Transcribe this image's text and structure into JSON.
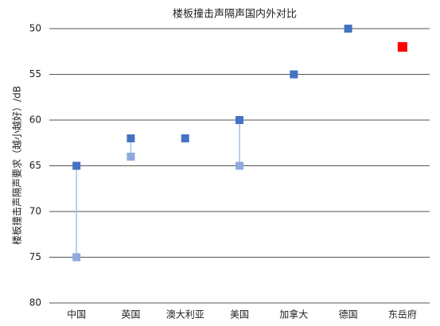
{
  "chart_data": {
    "type": "scatter",
    "title": "楼板撞击声隔声国内外对比",
    "y_label": "楼板撞击声隔声要求（越小越好）/dB",
    "categories": [
      "中国",
      "英国",
      "澳大利亚",
      "美国",
      "加拿大",
      "德国",
      "东岳府"
    ],
    "series": [
      {
        "color": "#4472c4",
        "values": [
          65,
          62,
          62,
          60,
          55,
          50,
          null
        ]
      },
      {
        "color": "#8faadc",
        "values": [
          75,
          64,
          null,
          65,
          null,
          null,
          null
        ]
      },
      {
        "color": "#ff0000",
        "values": [
          null,
          null,
          null,
          null,
          null,
          null,
          52
        ]
      }
    ],
    "range_line_color": "#a9c0e6",
    "ylim": [
      50,
      80
    ],
    "y_inverted": true,
    "yticks": [
      50,
      55,
      60,
      65,
      70,
      75,
      80
    ],
    "grid": true
  }
}
